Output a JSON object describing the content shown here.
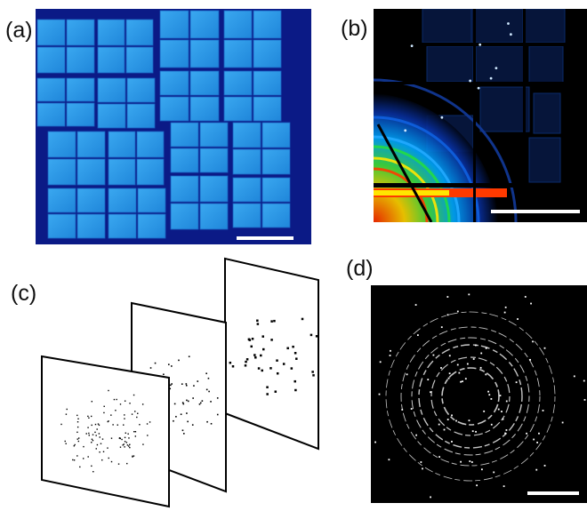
{
  "figure": {
    "panels": [
      {
        "id": "a",
        "label": "(a)",
        "content": "detector-tile-mosaic"
      },
      {
        "id": "b",
        "label": "(b)",
        "content": "diffraction-pattern-color"
      },
      {
        "id": "c",
        "label": "(c)",
        "content": "stacked-binary-frames"
      },
      {
        "id": "d",
        "label": "(d)",
        "content": "diffraction-rings-binary"
      }
    ],
    "colors": {
      "detector_background": "#0b1a86",
      "tile_fill": "#2e9be8",
      "tile_edge": "#1a5fc0",
      "scale_bar": "#ffffff",
      "panel_b_background": "#000000",
      "panel_d_background": "#000000",
      "frame_border": "#000000"
    }
  }
}
